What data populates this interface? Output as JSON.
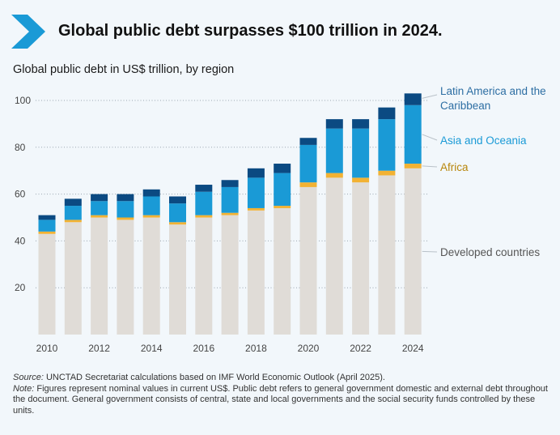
{
  "header": {
    "title": "Global public debt surpasses $100 trillion in 2024.",
    "accent_color": "#1a9ad6"
  },
  "chart_data": {
    "type": "bar",
    "stacked": true,
    "title": "Global public debt in US$ trillion, by region",
    "xlabel": "",
    "ylabel": "",
    "ylim": [
      0,
      105
    ],
    "yticks": [
      20,
      40,
      60,
      80,
      100
    ],
    "grid": "horizontal-dotted",
    "legend_placement": "right",
    "categories": [
      "2010",
      "2011",
      "2012",
      "2013",
      "2014",
      "2015",
      "2016",
      "2017",
      "2018",
      "2019",
      "2020",
      "2021",
      "2022",
      "2023",
      "2024"
    ],
    "xtick_labels": [
      "2010",
      "",
      "2012",
      "",
      "2014",
      "",
      "2016",
      "",
      "2018",
      "",
      "2020",
      "",
      "2022",
      "",
      "2024"
    ],
    "series": [
      {
        "name": "Developed countries",
        "color": "#e0dcd7",
        "values": [
          43,
          48,
          50,
          49,
          50,
          47,
          50,
          51,
          53,
          54,
          63,
          67,
          65,
          68,
          71
        ]
      },
      {
        "name": "Africa",
        "color": "#f2b233",
        "values": [
          1,
          1,
          1,
          1,
          1,
          1,
          1,
          1,
          1,
          1,
          2,
          2,
          2,
          2,
          2
        ]
      },
      {
        "name": "Asia and Oceania",
        "color": "#1a9ad6",
        "values": [
          5,
          6,
          6,
          7,
          8,
          8,
          10,
          11,
          13,
          14,
          16,
          19,
          21,
          22,
          25
        ]
      },
      {
        "name": "Latin America and the Caribbean",
        "color": "#0b4a82",
        "values": [
          2,
          3,
          3,
          3,
          3,
          3,
          3,
          3,
          4,
          4,
          3,
          4,
          4,
          5,
          5
        ]
      }
    ],
    "legend": [
      {
        "lines": [
          "Latin America and the",
          "Caribbean"
        ],
        "color": "#2d6ea3",
        "series": 3
      },
      {
        "lines": [
          "Asia and Oceania"
        ],
        "color": "#1a9ad6",
        "series": 2
      },
      {
        "lines": [
          "Africa"
        ],
        "color": "#b8860b",
        "series": 1
      },
      {
        "lines": [
          "Developed countries"
        ],
        "color": "#555555",
        "series": 0
      }
    ]
  },
  "footer": {
    "source_lead": "Source:",
    "source_text": " UNCTAD Secretariat calculations based on IMF World Economic Outlook (April 2025).",
    "note_lead": "Note:",
    "note_text": " Figures represent nominal values in current US$. Public debt refers to general government domestic and external debt throughout the document. General government consists of central, state and local governments and the social security funds controlled by these units."
  }
}
